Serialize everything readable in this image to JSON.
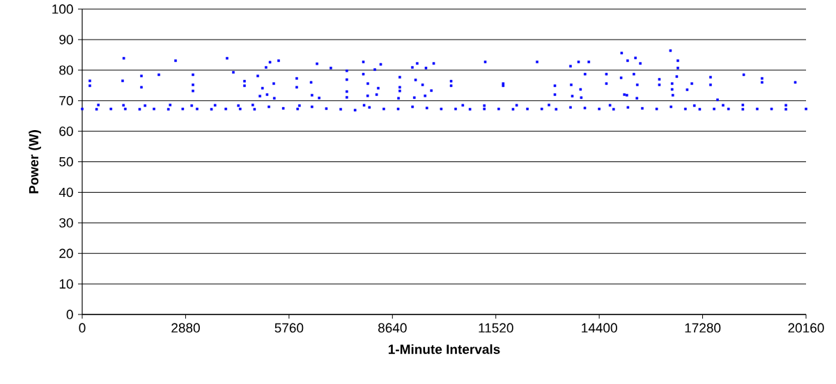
{
  "chart_data": {
    "type": "scatter",
    "xlabel": "1-Minute Intervals",
    "ylabel": "Power (W)",
    "xlim": [
      0,
      20160
    ],
    "ylim": [
      0,
      100
    ],
    "xticks": [
      0,
      2880,
      5760,
      8640,
      11520,
      14400,
      17280,
      20160
    ],
    "yticks": [
      0,
      10,
      20,
      30,
      40,
      50,
      60,
      70,
      80,
      90,
      100
    ],
    "grid": "y",
    "marker": "square",
    "series": [
      {
        "color": "#0000ff",
        "x": [
          0,
          400,
          800,
          1200,
          1600,
          2000,
          2400,
          2800,
          3200,
          3600,
          4000,
          4400,
          4800,
          5200,
          5600,
          6000,
          6400,
          6800,
          7200,
          7600,
          8000,
          8400,
          8800,
          9200,
          9600,
          10000,
          10400,
          10800,
          11200,
          11600,
          12000,
          12400,
          12800,
          13200,
          13600,
          14000,
          14400,
          14800,
          15200,
          15600,
          16000,
          16400,
          16800,
          17200,
          17600,
          18000,
          18400,
          18800,
          19200,
          19600,
          20160,
          450,
          1150,
          1750,
          2450,
          3050,
          3700,
          4350,
          4750,
          6050,
          7850,
          10600,
          11200,
          12100,
          13000,
          14700,
          17050,
          17850,
          18400,
          19600,
          4950,
          5150,
          5350,
          6400,
          6600,
          7950,
          8200,
          9250,
          9550,
          13650,
          13900,
          15100,
          15450,
          16450,
          213,
          213,
          1158,
          1125,
          1650,
          1650,
          2135,
          2600,
          3085,
          3085,
          3085,
          4035,
          4210,
          4520,
          4520,
          5230,
          5470,
          5120,
          4890,
          5020,
          5335,
          5975,
          5975,
          6540,
          6375,
          6925,
          7370,
          7370,
          7370,
          7370,
          7830,
          7830,
          7955,
          8315,
          8150,
          8245,
          8845,
          8845,
          8845,
          8810,
          9195,
          9330,
          9575,
          9790,
          9285,
          9480,
          9725,
          10275,
          10275,
          11225,
          11725,
          11725,
          12670,
          13165,
          13165,
          13600,
          13825,
          14110,
          13620,
          14005,
          13880,
          14600,
          14600,
          15025,
          15190,
          15410,
          15545,
          15010,
          15365,
          15460,
          15170,
          16075,
          16075,
          16385,
          16590,
          16590,
          16560,
          16430,
          16430,
          16850,
          16980,
          17500,
          17500,
          17695,
          18425,
          18935,
          18935,
          19860
        ],
        "values": [
          67.3,
          67.2,
          67.3,
          67.3,
          67.2,
          67.3,
          67.2,
          67.3,
          67.3,
          67.2,
          67.3,
          67.3,
          67.2,
          68.0,
          67.5,
          67.3,
          68.0,
          67.4,
          67.2,
          66.9,
          67.8,
          67.3,
          67.3,
          68.0,
          67.6,
          67.3,
          67.3,
          67.2,
          67.3,
          67.3,
          67.2,
          67.3,
          67.3,
          67.2,
          67.8,
          67.6,
          67.3,
          67.2,
          67.8,
          67.5,
          67.3,
          68.0,
          67.3,
          67.2,
          67.3,
          67.3,
          67.2,
          67.3,
          67.3,
          67.2,
          67.3,
          68.6,
          68.5,
          68.4,
          68.6,
          68.4,
          68.5,
          68.4,
          68.6,
          68.4,
          68.5,
          68.5,
          68.4,
          68.5,
          68.6,
          68.5,
          68.4,
          68.5,
          68.6,
          68.5,
          71.5,
          72.0,
          70.8,
          71.8,
          70.9,
          71.6,
          72.0,
          71.0,
          71.6,
          71.5,
          71.0,
          72.0,
          70.8,
          71.8,
          76.5,
          74.9,
          83.9,
          76.5,
          78.1,
          74.4,
          78.5,
          83.1,
          78.5,
          75.2,
          73.2,
          83.9,
          79.3,
          76.4,
          74.9,
          82.6,
          83.1,
          80.9,
          78.1,
          74.1,
          75.6,
          77.3,
          74.4,
          82.1,
          76.0,
          80.7,
          79.8,
          76.9,
          73.0,
          71.1,
          82.7,
          78.7,
          75.6,
          81.9,
          80.2,
          74.1,
          77.7,
          74.4,
          73.2,
          70.8,
          80.9,
          82.2,
          80.7,
          82.2,
          76.8,
          75.2,
          73.3,
          76.4,
          74.9,
          82.7,
          75.6,
          74.9,
          82.7,
          74.9,
          72.0,
          81.3,
          82.7,
          82.7,
          75.2,
          78.7,
          73.7,
          78.7,
          75.6,
          85.6,
          83.1,
          84.0,
          82.2,
          77.5,
          78.7,
          75.2,
          71.8,
          77.0,
          75.2,
          86.4,
          83.1,
          80.7,
          77.9,
          75.6,
          73.7,
          73.6,
          75.6,
          77.7,
          75.2,
          70.3,
          78.5,
          77.3,
          76.0,
          76.0
        ]
      }
    ]
  }
}
